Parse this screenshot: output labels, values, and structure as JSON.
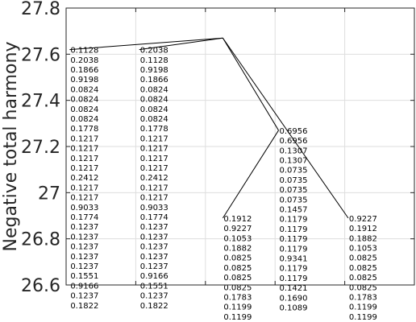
{
  "chart_data": {
    "type": "line",
    "ylabel": "Negative total harmony",
    "ylim": [
      26.6,
      27.8
    ],
    "yticks": [
      26.6,
      26.8,
      27,
      27.2,
      27.4,
      27.6,
      27.8
    ],
    "ytick_labels": [
      "26.6",
      "26.8",
      "27",
      "27.2",
      "27.4",
      "27.6",
      "27.8"
    ],
    "xlim": [
      0,
      5
    ],
    "xgrid": [
      0,
      1,
      2,
      3,
      4,
      5
    ],
    "grid": true,
    "segments": [
      {
        "x": [
          0.05,
          2.25
        ],
        "y": [
          27.62,
          27.67
        ]
      },
      {
        "x": [
          1.05,
          2.25
        ],
        "y": [
          27.62,
          27.67
        ]
      },
      {
        "x": [
          2.25,
          3.05
        ],
        "y": [
          27.67,
          27.27
        ]
      },
      {
        "x": [
          2.25,
          4.05
        ],
        "y": [
          27.67,
          26.89
        ]
      },
      {
        "x": [
          3.05,
          2.25
        ],
        "y": [
          27.27,
          26.89
        ]
      }
    ],
    "text_columns": [
      {
        "x": 0.05,
        "y": 27.62,
        "values": [
          "0.1128",
          "0.2038",
          "0.1866",
          "0.9198",
          "0.0824",
          "0.0824",
          "0.0824",
          "0.0824",
          "0.1778",
          "0.1217",
          "0.1217",
          "0.1217",
          "0.1217",
          "0.2412",
          "0.1217",
          "0.1217",
          "0.9033",
          "0.1774",
          "0.1237",
          "0.1237",
          "0.1237",
          "0.1237",
          "0.1237",
          "0.1551",
          "0.9166",
          "0.1237",
          "0.1822"
        ]
      },
      {
        "x": 1.05,
        "y": 27.62,
        "values": [
          "0.2038",
          "0.1128",
          "0.9198",
          "0.1866",
          "0.0824",
          "0.0824",
          "0.0824",
          "0.0824",
          "0.1778",
          "0.1217",
          "0.1217",
          "0.1217",
          "0.1217",
          "0.2412",
          "0.1217",
          "0.1217",
          "0.9033",
          "0.1774",
          "0.1237",
          "0.1237",
          "0.1237",
          "0.1237",
          "0.1237",
          "0.9166",
          "0.1551",
          "0.1237",
          "0.1822"
        ]
      },
      {
        "x": 3.05,
        "y": 27.27,
        "values": [
          "0.6956",
          "0.6956",
          "0.1307",
          "0.1307",
          "0.0735",
          "0.0735",
          "0.0735",
          "0.0735",
          "0.1457",
          "0.1179",
          "0.1179",
          "0.1179",
          "0.1179",
          "0.9341",
          "0.1179",
          "0.1179",
          "0.1421",
          "0.1690",
          "0.1089"
        ]
      },
      {
        "x": 2.25,
        "y": 26.89,
        "values": [
          "0.1912",
          "0.9227",
          "0.1053",
          "0.1882",
          "0.0825",
          "0.0825",
          "0.0825",
          "0.0825",
          "0.1783",
          "0.1199",
          "0.1199"
        ]
      },
      {
        "x": 4.05,
        "y": 26.89,
        "values": [
          "0.9227",
          "0.1912",
          "0.1882",
          "0.1053",
          "0.0825",
          "0.0825",
          "0.0825",
          "0.0825",
          "0.1783",
          "0.1199",
          "0.1199"
        ]
      }
    ]
  }
}
